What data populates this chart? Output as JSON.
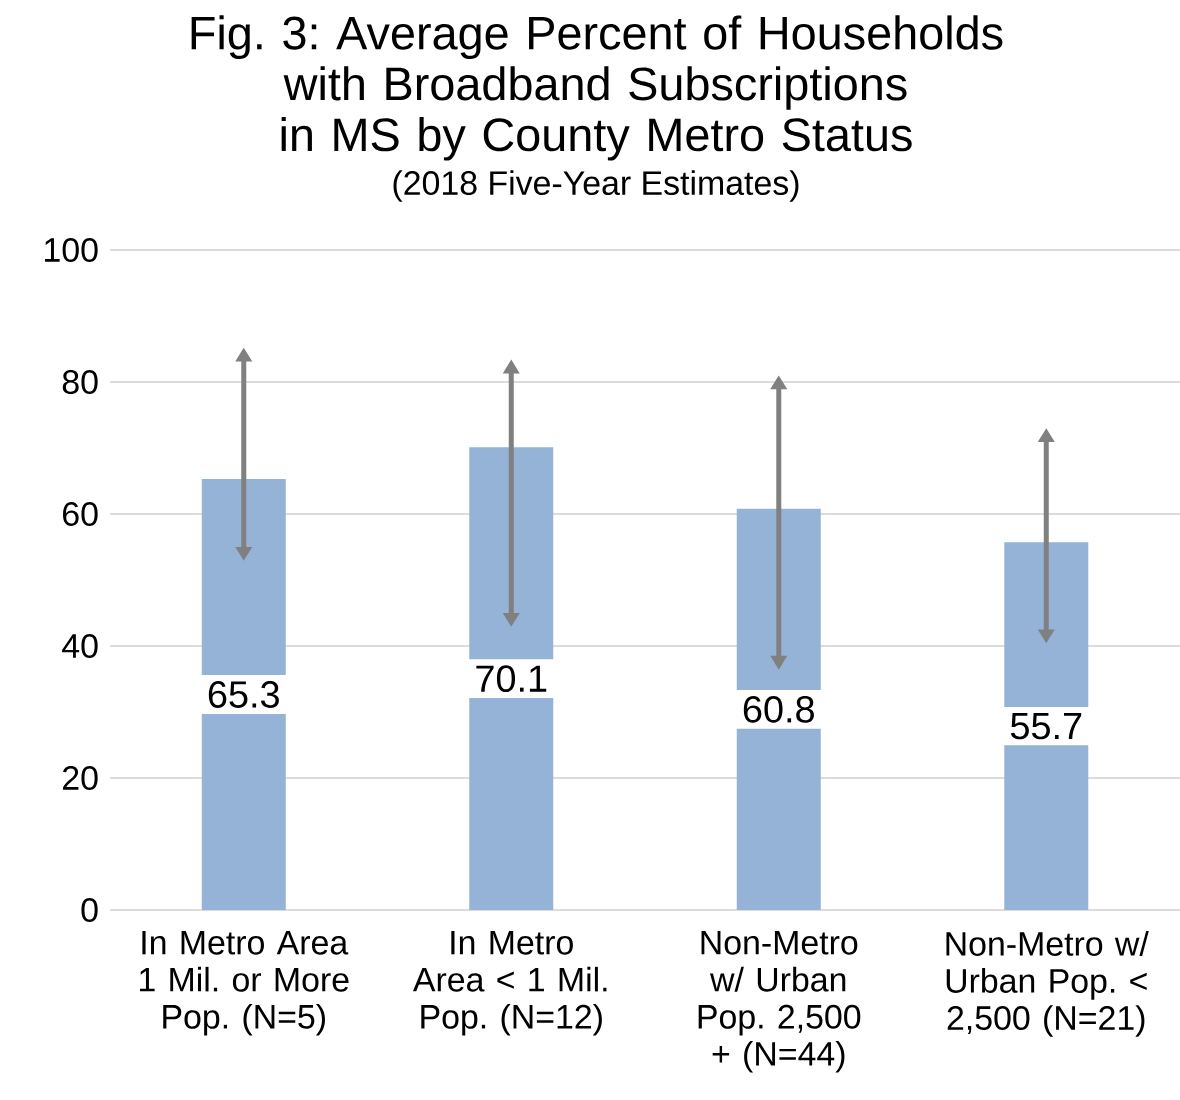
{
  "chart_data": {
    "type": "bar",
    "title": "Fig. 3: Average Percent of Households with Broadband Subscriptions in MS by County Metro Status",
    "subtitle": "(2018 Five-Year Estimates)",
    "categories": [
      "In Metro Area 1 Mil. or More Pop. (N=5)",
      "In Metro Area < 1 Mil. Pop. (N=12)",
      "Non-Metro w/ Urban Pop. 2,500 + (N=44)",
      "Non-Metro w/ Urban Pop. < 2,500 (N=21)"
    ],
    "values": [
      65.3,
      70.1,
      60.8,
      55.7
    ],
    "errors": [
      [
        55.0,
        83.1
      ],
      [
        45.0,
        81.3
      ],
      [
        38.5,
        78.9
      ],
      [
        42.5,
        70.9
      ]
    ],
    "color": "#95b3d7",
    "data_labels": true,
    "grid": "y",
    "ylim": [
      0,
      100
    ],
    "yticks": [
      0,
      20,
      40,
      60,
      80,
      100
    ]
  }
}
